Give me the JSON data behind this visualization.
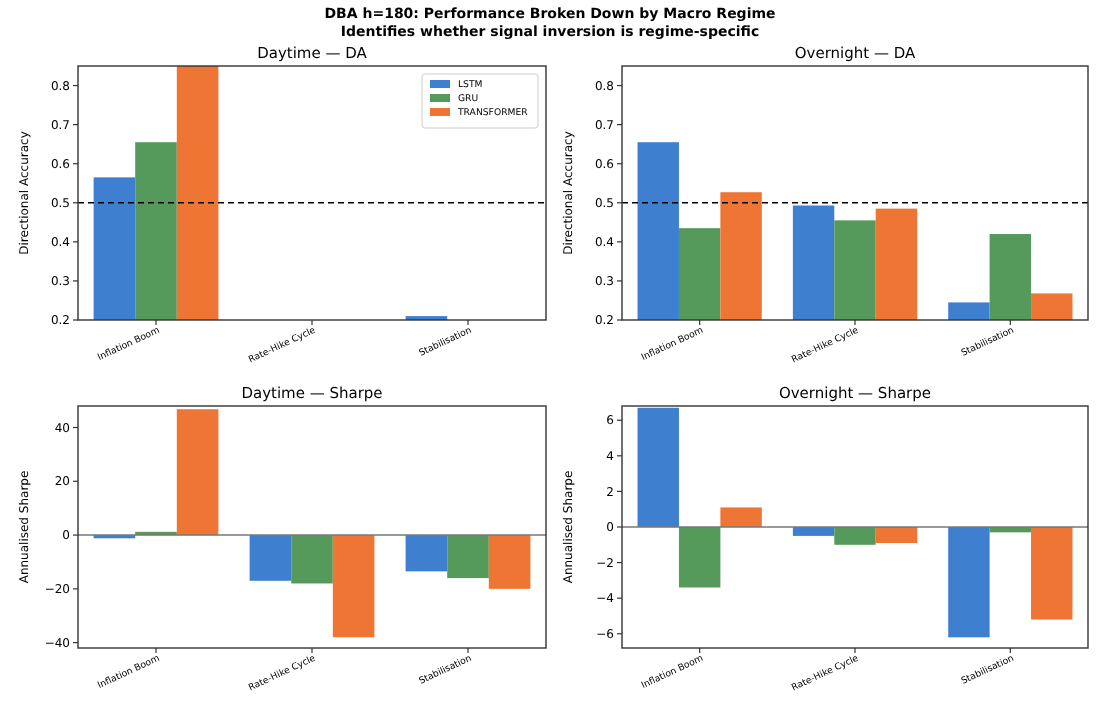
{
  "chart_data": [
    {
      "type": "bar",
      "title": "Daytime — DA",
      "annotations": [
        "DBA h=180: Performance Broken Down by Macro Regime",
        "Identifies whether signal inversion is regime-specific"
      ],
      "ylabel": "Directional Accuracy",
      "categories": [
        "Inflation Boom",
        "Rate-Hike Cycle",
        "Stabilisation"
      ],
      "series": [
        {
          "name": "LSTM",
          "color": "#3f7fcf",
          "values": [
            0.565,
            null,
            0.21
          ]
        },
        {
          "name": "GRU",
          "color": "#559a5a",
          "values": [
            0.655,
            null,
            null
          ]
        },
        {
          "name": "TRANSFORMER",
          "color": "#ee7533",
          "values": [
            0.85,
            null,
            null
          ]
        }
      ],
      "ylim": [
        0.2,
        0.85
      ],
      "yticks": [
        0.2,
        0.3,
        0.4,
        0.5,
        0.6,
        0.7,
        0.8
      ],
      "ref_lines": [
        {
          "axis": "y",
          "value": 0.5,
          "color": "#000000",
          "line_style": "dashed"
        }
      ],
      "legend": "top right",
      "grid": false
    },
    {
      "type": "bar",
      "title": "Overnight — DA",
      "ylabel": "Directional Accuracy",
      "categories": [
        "Inflation Boom",
        "Rate-Hike Cycle",
        "Stabilisation"
      ],
      "series": [
        {
          "color": "#3f7fcf",
          "values": [
            0.655,
            0.493,
            0.245
          ]
        },
        {
          "color": "#559a5a",
          "values": [
            0.435,
            0.455,
            0.42
          ]
        },
        {
          "color": "#ee7533",
          "values": [
            0.527,
            0.485,
            0.268
          ]
        }
      ],
      "ylim": [
        0.2,
        0.85
      ],
      "yticks": [
        0.2,
        0.3,
        0.4,
        0.5,
        0.6,
        0.7,
        0.8
      ],
      "ref_lines": [
        {
          "axis": "y",
          "value": 0.5,
          "color": "#000000",
          "line_style": "dashed"
        }
      ],
      "legend": false,
      "grid": false
    },
    {
      "type": "bar",
      "title": "Daytime — Sharpe",
      "ylabel": "Annualised Sharpe",
      "categories": [
        "Inflation Boom",
        "Rate-Hike Cycle",
        "Stabilisation"
      ],
      "series": [
        {
          "color": "#3f7fcf",
          "values": [
            -1.2,
            -17,
            -13.5
          ]
        },
        {
          "color": "#559a5a",
          "values": [
            1.2,
            -18,
            -16
          ]
        },
        {
          "color": "#ee7533",
          "values": [
            46.8,
            -38,
            -20
          ]
        }
      ],
      "ylim": [
        -42,
        48
      ],
      "yticks": [
        -40,
        -20,
        0,
        20,
        40
      ],
      "ref_lines": [
        {
          "axis": "y",
          "value": 0,
          "color": "#777777",
          "line_style": "solid"
        }
      ],
      "legend": false,
      "grid": false
    },
    {
      "type": "bar",
      "title": "Overnight — Sharpe",
      "ylabel": "Annualised Sharpe",
      "categories": [
        "Inflation Boom",
        "Rate-Hike Cycle",
        "Stabilisation"
      ],
      "series": [
        {
          "color": "#3f7fcf",
          "values": [
            6.7,
            -0.5,
            -6.2
          ]
        },
        {
          "color": "#559a5a",
          "values": [
            -3.4,
            -1.0,
            -0.3
          ]
        },
        {
          "color": "#ee7533",
          "values": [
            1.1,
            -0.9,
            -5.2
          ]
        }
      ],
      "ylim": [
        -6.8,
        6.8
      ],
      "yticks": [
        -6,
        -4,
        -2,
        0,
        2,
        4,
        6
      ],
      "ref_lines": [
        {
          "axis": "y",
          "value": 0,
          "color": "#777777",
          "line_style": "solid"
        }
      ],
      "legend": false,
      "grid": false
    }
  ]
}
